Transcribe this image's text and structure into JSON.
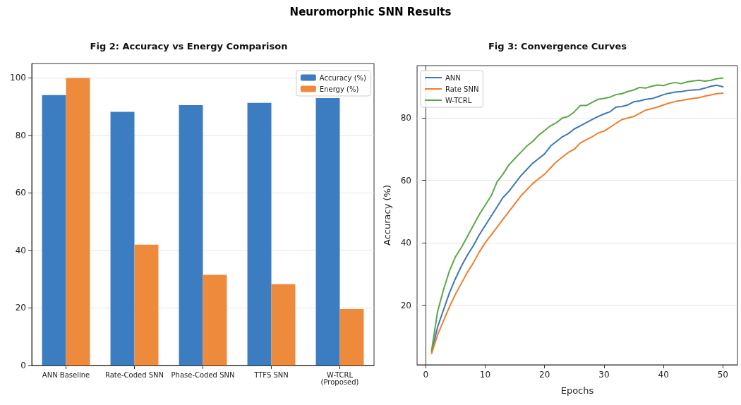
{
  "chart_data": [
    {
      "type": "bar",
      "title": "Fig 2: Accuracy vs Energy Comparison",
      "annotations": [
        "Neuromorphic SNN Results"
      ],
      "categories": [
        "ANN Baseline",
        "Rate-Coded SNN",
        "Phase-Coded SNN",
        "TTFS SNN",
        "W-TCRL\n(Proposed)"
      ],
      "series": [
        {
          "name": "Accuracy (%)",
          "color": "#3b7dc0",
          "values": [
            94,
            88.2,
            90.5,
            91.3,
            93
          ]
        },
        {
          "name": "Energy (%)",
          "color": "#ee8a3c",
          "values": [
            100,
            42,
            31.5,
            28.3,
            19.6
          ]
        }
      ],
      "ylim": [
        0,
        105
      ],
      "yticks": [
        0,
        20,
        40,
        60,
        80,
        100
      ],
      "grid": "y",
      "legend": "top right"
    },
    {
      "type": "line",
      "title": "Fig 3: Convergence Curves",
      "xlabel": "Epochs",
      "ylabel": "Accuracy (%)",
      "x": [
        1,
        2,
        3,
        4,
        5,
        6,
        7,
        8,
        9,
        10,
        11,
        12,
        13,
        14,
        15,
        16,
        17,
        18,
        19,
        20,
        21,
        22,
        23,
        24,
        25,
        26,
        27,
        28,
        29,
        30,
        31,
        32,
        33,
        34,
        35,
        36,
        37,
        38,
        39,
        40,
        41,
        42,
        43,
        44,
        45,
        46,
        47,
        48,
        49,
        50
      ],
      "series": [
        {
          "name": "ANN",
          "color": "#3a78b8",
          "values": [
            5,
            13,
            18.5,
            24,
            28.5,
            32.5,
            36,
            39,
            42.5,
            45.5,
            48.5,
            51.5,
            54.5,
            56.5,
            59,
            61.5,
            63.5,
            65.5,
            67,
            68.5,
            71,
            72.5,
            74,
            75,
            76.5,
            77.5,
            78.5,
            79.5,
            80.5,
            81.3,
            82,
            83.5,
            83.7,
            84.2,
            85.2,
            85.5,
            86,
            86.2,
            86.8,
            87.5,
            88,
            88.3,
            88.5,
            88.8,
            89,
            89.1,
            89.6,
            90.2,
            90.5,
            90
          ]
        },
        {
          "name": "Rate SNN",
          "color": "#ee7f2d",
          "values": [
            4.5,
            10.5,
            15,
            19.5,
            23.5,
            27,
            30.5,
            33.5,
            37,
            40,
            42.5,
            45,
            47.5,
            50,
            52.5,
            55,
            57,
            59,
            60.5,
            62,
            64,
            66,
            67.5,
            69,
            70,
            72,
            73,
            74,
            75.2,
            75.8,
            77,
            78.3,
            79.5,
            80,
            80.5,
            81.5,
            82.5,
            83,
            83.5,
            84.2,
            84.8,
            85.3,
            85.6,
            86,
            86.3,
            86.5,
            87,
            87.4,
            87.8,
            88
          ]
        },
        {
          "name": "W-TCRL",
          "color": "#5aa845",
          "values": [
            5.5,
            18,
            25,
            31,
            35.5,
            38.5,
            42,
            45.5,
            49,
            52,
            55,
            59.5,
            62,
            65,
            67,
            69,
            71,
            72.5,
            74.5,
            76,
            77.5,
            78.5,
            80,
            80.5,
            82,
            84,
            84,
            85,
            86,
            86.3,
            86.7,
            87.5,
            87.8,
            88.5,
            89,
            89.8,
            89.6,
            90.2,
            90.6,
            90.4,
            91,
            91.4,
            91,
            91.6,
            91.9,
            92.1,
            91.8,
            92.1,
            92.6,
            92.8
          ]
        }
      ],
      "xlim": [
        -1.45,
        52.45
      ],
      "xticks": [
        0,
        10,
        20,
        30,
        40,
        50
      ],
      "ylim": [
        0.9,
        96.8
      ],
      "yticks": [
        20,
        40,
        60,
        80
      ],
      "grid": "y",
      "legend": "top left",
      "marker": "none",
      "line_style": "solid"
    }
  ]
}
